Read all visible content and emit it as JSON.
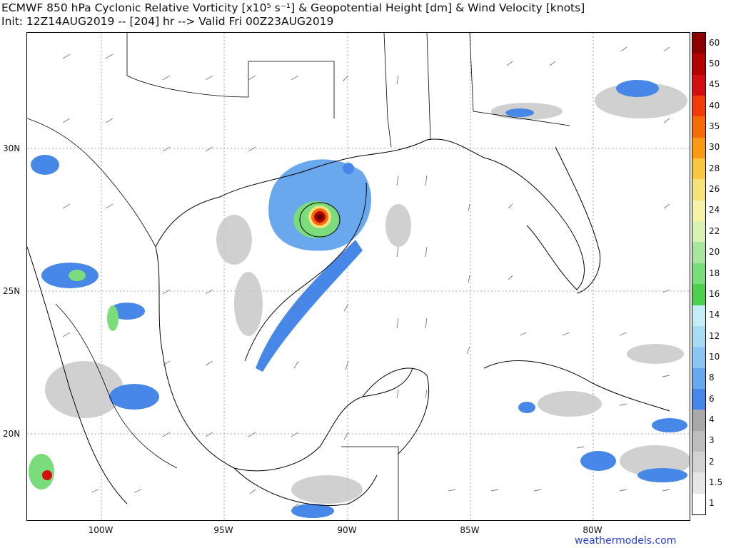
{
  "title": {
    "line1": "ECMWF 850 hPa Cyclonic Relative Vorticity [x10⁵ s⁻¹] & Geopotential Height [dm] & Wind Velocity [knots]",
    "line2": "Init: 12Z14AUG2019 -- [204] hr --> Valid Fri 00Z23AUG2019"
  },
  "lat_labels": [
    "30N",
    "25N",
    "20N"
  ],
  "lon_labels": [
    "100W",
    "95W",
    "90W",
    "85W",
    "80W"
  ],
  "colorbar": {
    "labels": [
      "60",
      "50",
      "45",
      "40",
      "35",
      "30",
      "28",
      "26",
      "24",
      "22",
      "20",
      "18",
      "16",
      "14",
      "12",
      "10",
      "8",
      "6",
      "4",
      "3",
      "2",
      "1.5",
      "1"
    ],
    "colors": [
      "#8b0000",
      "#b30000",
      "#d40f0f",
      "#f03c0a",
      "#f76a0a",
      "#f99a14",
      "#f8c640",
      "#f6e27a",
      "#f6f2a8",
      "#d9f2b4",
      "#a8e6a0",
      "#7bdc7b",
      "#4fcf50",
      "#c6eef6",
      "#a8dbf4",
      "#8cc5f2",
      "#6aa8ee",
      "#4687e8",
      "#a8a8a8",
      "#bdbdbd",
      "#d2d2d2",
      "#e6e6e6",
      "#ffffff"
    ]
  },
  "credit": "weathermodels.com"
}
